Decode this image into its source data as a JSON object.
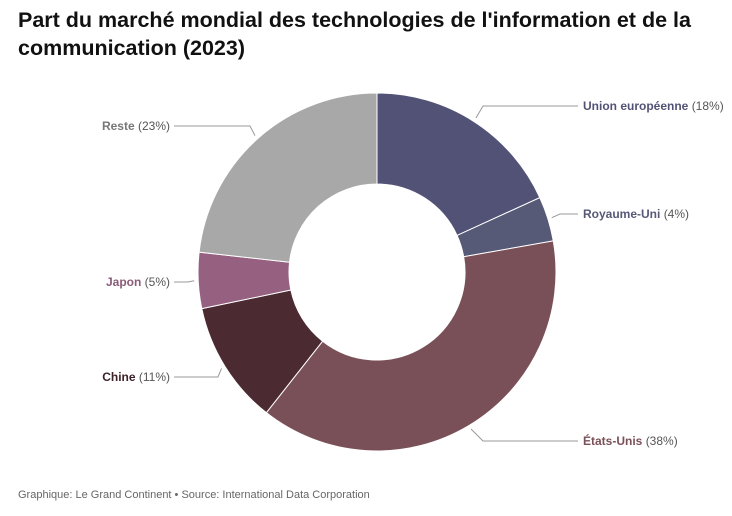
{
  "chart_data": {
    "type": "pie",
    "title": "Part du marché mondial des technologies de l'information et de la communication (2023)",
    "slices": [
      {
        "name": "Union européenne",
        "pct_label": "(18%)",
        "value": 18,
        "color": "#525276",
        "text_color": "#525276"
      },
      {
        "name": "Royaume-Uni",
        "pct_label": "(4%)",
        "value": 4,
        "color": "#565a77",
        "text_color": "#565a77"
      },
      {
        "name": "États-Unis",
        "pct_label": "(38%)",
        "value": 38,
        "color": "#7a5058",
        "text_color": "#7a5058"
      },
      {
        "name": "Chine",
        "pct_label": "(11%)",
        "value": 11,
        "color": "#4c2a31",
        "text_color": "#3d2328"
      },
      {
        "name": "Japon",
        "pct_label": "(5%)",
        "value": 5,
        "color": "#966181",
        "text_color": "#8a5a77"
      },
      {
        "name": "Reste",
        "pct_label": "(23%)",
        "value": 23,
        "color": "#a8a8a8",
        "text_color": "#777777"
      }
    ]
  },
  "footer": "Graphique: Le Grand Continent • Source: International Data Corporation"
}
